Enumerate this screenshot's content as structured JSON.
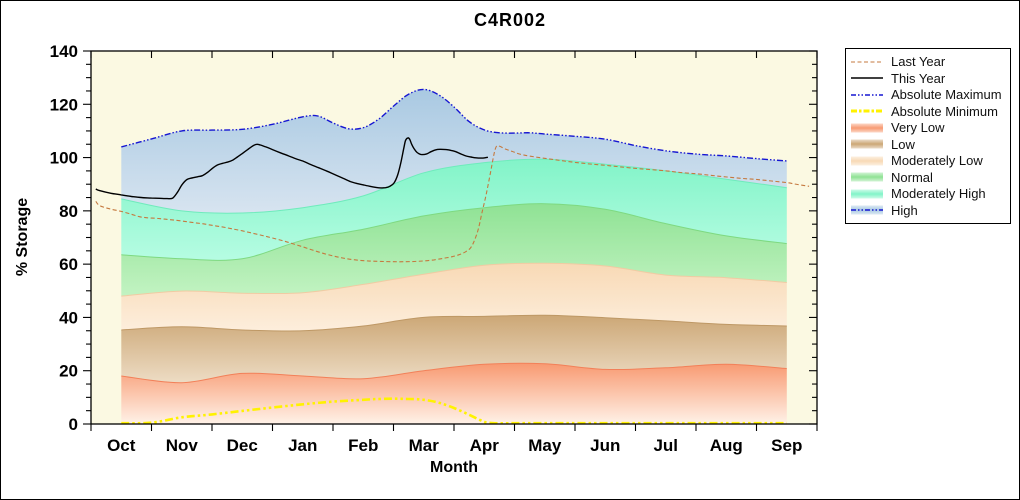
{
  "chart_data": {
    "type": "area",
    "title": "C4R002",
    "xlabel": "Month",
    "ylabel": "% Storage",
    "ylim": [
      0,
      140
    ],
    "y_major_step": 20,
    "y_minor_step": 5,
    "y_tick_labels": [
      "0",
      "20",
      "40",
      "60",
      "80",
      "100",
      "120",
      "140"
    ],
    "months": [
      "Oct",
      "Nov",
      "Dec",
      "Jan",
      "Feb",
      "Mar",
      "Apr",
      "May",
      "Jun",
      "Jul",
      "Aug",
      "Sep"
    ],
    "plot_background": "#FBF9E2",
    "grid": "off",
    "legend_position": "top-right",
    "bands": [
      {
        "name": "Very Low",
        "top_values": [
          18,
          15.5,
          19,
          18,
          17,
          20,
          22.4,
          22.6,
          20.5,
          21.1,
          22.4,
          20.8
        ],
        "color_top": "#F89A72",
        "color_bottom": "#FFF2E8",
        "edge": "#F28059"
      },
      {
        "name": "Low",
        "top_values": [
          35.3,
          36.5,
          35.3,
          35,
          36.8,
          40,
          40.4,
          40.8,
          39.9,
          38.7,
          37.4,
          36.8
        ],
        "color_top": "#CCA776",
        "color_bottom": "#EDDCC4",
        "edge": "#BE9865"
      },
      {
        "name": "Moderately Low",
        "top_values": [
          48,
          49.9,
          49.1,
          49.3,
          52.4,
          56.2,
          59.6,
          60.3,
          59.3,
          55.9,
          54.9,
          53.1
        ],
        "color_top": "#F8D9B5",
        "color_bottom": "#FDEEDC",
        "edge": "#F0CBA3"
      },
      {
        "name": "Normal",
        "top_values": [
          63.5,
          62,
          62,
          69,
          73.1,
          78.1,
          81.2,
          82.7,
          80.6,
          75.2,
          70.6,
          67.7
        ],
        "color_top": "#8FE294",
        "color_bottom": "#C2F3C2",
        "edge": "#7ED981"
      },
      {
        "name": "Moderately High",
        "top_values": [
          84.5,
          80,
          79.2,
          81.2,
          85.6,
          94.3,
          98.1,
          99.4,
          97.5,
          95,
          91.9,
          88.7
        ],
        "color_top": "#82F4C8",
        "color_bottom": "#B5FCE2",
        "edge": "#6FEBBC"
      },
      {
        "name": "High",
        "top_follows": "Absolute Maximum",
        "color_top": "#A9C9E2",
        "color_bottom": "#D7E4F0",
        "edge": null
      }
    ],
    "lines": [
      {
        "name": "Absolute Minimum",
        "color": "#FFF200",
        "width": 2.6,
        "dash": "8 3 2.5 3 2.5 3",
        "points": [
          [
            0,
            0.3
          ],
          [
            0.5,
            0.5
          ],
          [
            1,
            2.5
          ],
          [
            1.5,
            3.6
          ],
          [
            2,
            4.9
          ],
          [
            2.5,
            6.2
          ],
          [
            3,
            7.4
          ],
          [
            3.5,
            8.4
          ],
          [
            4,
            9.1
          ],
          [
            4.26,
            9.4
          ],
          [
            4.51,
            9.5
          ],
          [
            4.75,
            9.4
          ],
          [
            5,
            9.1
          ],
          [
            5.25,
            8
          ],
          [
            5.5,
            6
          ],
          [
            5.75,
            3.5
          ],
          [
            5.93,
            1.5
          ],
          [
            6.1,
            0.4
          ],
          [
            6.6,
            0.3
          ],
          [
            8,
            0.3
          ],
          [
            9.5,
            0.3
          ],
          [
            11,
            0.3
          ]
        ]
      },
      {
        "name": "Absolute Maximum",
        "color": "#1616D2",
        "width": 1.4,
        "dash": "6 2 1.5 2 1.5 2",
        "points": [
          [
            0,
            104
          ],
          [
            0.5,
            107
          ],
          [
            1,
            110
          ],
          [
            1.5,
            110.3
          ],
          [
            2,
            110.6
          ],
          [
            2.5,
            112.5
          ],
          [
            3,
            115.3
          ],
          [
            3.25,
            115.6
          ],
          [
            3.5,
            113
          ],
          [
            3.76,
            110.8
          ],
          [
            4.01,
            111.3
          ],
          [
            4.26,
            114.5
          ],
          [
            4.51,
            119.5
          ],
          [
            4.75,
            123.8
          ],
          [
            5,
            125.6
          ],
          [
            5.25,
            123.5
          ],
          [
            5.5,
            119
          ],
          [
            5.75,
            113.5
          ],
          [
            6.01,
            110.3
          ],
          [
            6.26,
            109.3
          ],
          [
            6.51,
            109.2
          ],
          [
            6.76,
            109.3
          ],
          [
            7.01,
            108.8
          ],
          [
            7.5,
            108
          ],
          [
            8,
            106.9
          ],
          [
            8.5,
            104.5
          ],
          [
            9.01,
            102.5
          ],
          [
            9.51,
            101.3
          ],
          [
            10.01,
            100.6
          ],
          [
            10.5,
            99.6
          ],
          [
            11,
            98.7
          ]
        ]
      },
      {
        "name": "Last Year",
        "color": "#C5793F",
        "width": 1.1,
        "dash": "4 2.5",
        "points": [
          [
            -0.42,
            83.6
          ],
          [
            -0.36,
            82
          ],
          [
            -0.2,
            80.8
          ],
          [
            0,
            79.8
          ],
          [
            0.17,
            78.7
          ],
          [
            0.3,
            77.8
          ],
          [
            0.43,
            77.4
          ],
          [
            0.58,
            77.2
          ],
          [
            0.71,
            76.9
          ],
          [
            0.85,
            76.6
          ],
          [
            1,
            76.2
          ],
          [
            1.16,
            75.7
          ],
          [
            1.33,
            75.2
          ],
          [
            1.49,
            74.6
          ],
          [
            1.66,
            74
          ],
          [
            1.82,
            73.3
          ],
          [
            2,
            72.5
          ],
          [
            2.17,
            71.6
          ],
          [
            2.34,
            70.7
          ],
          [
            2.5,
            69.8
          ],
          [
            2.67,
            68.8
          ],
          [
            2.83,
            67.7
          ],
          [
            3,
            66.5
          ],
          [
            3.16,
            65.3
          ],
          [
            3.33,
            64.1
          ],
          [
            3.5,
            63.1
          ],
          [
            3.66,
            62.3
          ],
          [
            3.83,
            61.7
          ],
          [
            4.01,
            61.3
          ],
          [
            4.17,
            61.1
          ],
          [
            4.34,
            61
          ],
          [
            4.51,
            60.9
          ],
          [
            4.67,
            60.9
          ],
          [
            4.84,
            61
          ],
          [
            5,
            61.2
          ],
          [
            5.17,
            61.6
          ],
          [
            5.33,
            62.2
          ],
          [
            5.47,
            62.8
          ],
          [
            5.58,
            63.5
          ],
          [
            5.68,
            64.5
          ],
          [
            5.77,
            66
          ],
          [
            5.83,
            68.5
          ],
          [
            5.9,
            73
          ],
          [
            5.96,
            79
          ],
          [
            6.03,
            86
          ],
          [
            6.1,
            94
          ],
          [
            6.15,
            100
          ],
          [
            6.18,
            103
          ],
          [
            6.21,
            104.4
          ],
          [
            6.26,
            104.2
          ],
          [
            6.34,
            103.3
          ],
          [
            6.46,
            102.3
          ],
          [
            6.59,
            101.3
          ],
          [
            6.76,
            100.5
          ],
          [
            7.01,
            99.7
          ],
          [
            7.26,
            98.9
          ],
          [
            7.5,
            98.2
          ],
          [
            7.75,
            97.6
          ],
          [
            8,
            97.1
          ],
          [
            8.25,
            96.5
          ],
          [
            8.58,
            95.8
          ],
          [
            9.01,
            95
          ],
          [
            9.24,
            94.4
          ],
          [
            9.51,
            93.9
          ],
          [
            9.76,
            93.3
          ],
          [
            10.01,
            92.7
          ],
          [
            10.26,
            92.2
          ],
          [
            10.5,
            91.8
          ],
          [
            10.75,
            91.2
          ],
          [
            11,
            90.6
          ],
          [
            11.18,
            89.9
          ],
          [
            11.37,
            89.2
          ]
        ]
      },
      {
        "name": "This Year",
        "color": "#000000",
        "width": 1.4,
        "dash": "",
        "points": [
          [
            -0.42,
            88.2
          ],
          [
            -0.36,
            87.6
          ],
          [
            -0.17,
            86.6
          ],
          [
            0,
            86
          ],
          [
            0.17,
            85.4
          ],
          [
            0.33,
            85
          ],
          [
            0.5,
            84.8
          ],
          [
            0.63,
            84.7
          ],
          [
            0.76,
            84.6
          ],
          [
            0.85,
            84.8
          ],
          [
            0.93,
            87
          ],
          [
            1.01,
            90
          ],
          [
            1.09,
            91.8
          ],
          [
            1.18,
            92.4
          ],
          [
            1.26,
            92.8
          ],
          [
            1.34,
            93.2
          ],
          [
            1.43,
            94.5
          ],
          [
            1.51,
            96
          ],
          [
            1.59,
            97.2
          ],
          [
            1.67,
            97.8
          ],
          [
            1.76,
            98.3
          ],
          [
            1.84,
            99
          ],
          [
            1.92,
            100.2
          ],
          [
            2,
            101.5
          ],
          [
            2.09,
            103
          ],
          [
            2.17,
            104.3
          ],
          [
            2.24,
            105
          ],
          [
            2.3,
            104.7
          ],
          [
            2.39,
            104
          ],
          [
            2.5,
            103
          ],
          [
            2.63,
            101.8
          ],
          [
            2.77,
            100.6
          ],
          [
            2.88,
            99.6
          ],
          [
            3,
            98.7
          ],
          [
            3.13,
            97.4
          ],
          [
            3.26,
            96.2
          ],
          [
            3.4,
            94.9
          ],
          [
            3.53,
            93.6
          ],
          [
            3.66,
            92.3
          ],
          [
            3.79,
            91
          ],
          [
            3.91,
            90.2
          ],
          [
            4.01,
            89.7
          ],
          [
            4.11,
            89.2
          ],
          [
            4.21,
            88.8
          ],
          [
            4.29,
            88.6
          ],
          [
            4.37,
            88.7
          ],
          [
            4.44,
            89.2
          ],
          [
            4.51,
            90.5
          ],
          [
            4.57,
            93.5
          ],
          [
            4.62,
            98
          ],
          [
            4.67,
            103.5
          ],
          [
            4.7,
            106.5
          ],
          [
            4.74,
            107.4
          ],
          [
            4.77,
            106.8
          ],
          [
            4.8,
            105
          ],
          [
            4.84,
            103.3
          ],
          [
            4.89,
            101.9
          ],
          [
            4.95,
            101.2
          ],
          [
            5.04,
            101.3
          ],
          [
            5.12,
            102.2
          ],
          [
            5.2,
            102.9
          ],
          [
            5.28,
            103.1
          ],
          [
            5.37,
            103
          ],
          [
            5.45,
            102.7
          ],
          [
            5.53,
            102.2
          ],
          [
            5.62,
            101.3
          ],
          [
            5.7,
            100.6
          ],
          [
            5.78,
            100.2
          ],
          [
            5.86,
            99.9
          ],
          [
            5.95,
            99.8
          ],
          [
            6.01,
            99.9
          ],
          [
            6.06,
            100.1
          ]
        ]
      }
    ],
    "legend": {
      "entries": [
        {
          "label": "Last Year",
          "kind": "line",
          "color": "#C5793F",
          "dash": "4 2.5",
          "width": 1.1
        },
        {
          "label": "This Year",
          "kind": "line",
          "color": "#000000",
          "dash": "",
          "width": 1.4
        },
        {
          "label": "Absolute Maximum",
          "kind": "line",
          "color": "#1616D2",
          "dash": "5 2 1.5 2 1.5 2",
          "width": 1.4
        },
        {
          "label": "Absolute Minimum",
          "kind": "line",
          "color": "#FFF200",
          "dash": "6 2 2.5 2",
          "width": 3
        },
        {
          "label": "Very Low",
          "kind": "band",
          "color": "#F89A72"
        },
        {
          "label": "Low",
          "kind": "band",
          "color": "#CCA776"
        },
        {
          "label": "Moderately Low",
          "kind": "band",
          "color": "#F8D9B5"
        },
        {
          "label": "Normal",
          "kind": "band",
          "color": "#8FE294"
        },
        {
          "label": "Moderately High",
          "kind": "band",
          "color": "#82F4C8"
        },
        {
          "label": "High",
          "kind": "band-line",
          "color": "#A9C9E2",
          "line_color": "#1616D2",
          "dash": "5 2 1.5 2 1.5 2"
        }
      ]
    }
  }
}
